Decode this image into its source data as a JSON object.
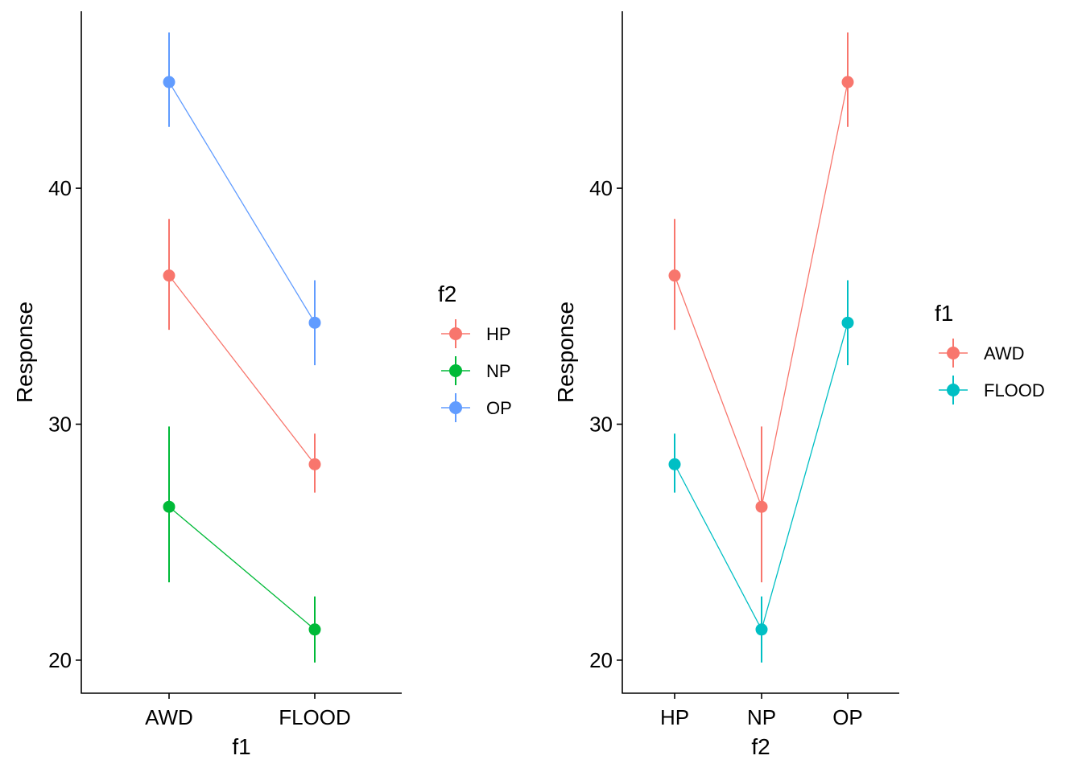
{
  "chart_data": [
    {
      "type": "line",
      "xlabel": "f1",
      "ylabel": "Response",
      "categories": [
        "AWD",
        "FLOOD"
      ],
      "ylim": [
        18.6,
        47.5
      ],
      "yticks": [
        20,
        30,
        40
      ],
      "grid": false,
      "legend": {
        "title": "f2",
        "position": "right"
      },
      "series": [
        {
          "name": "HP",
          "color": "#F8766D",
          "values": [
            36.3,
            28.3
          ],
          "lower": [
            34.0,
            27.1
          ],
          "upper": [
            38.7,
            29.6
          ]
        },
        {
          "name": "NP",
          "color": "#00BA38",
          "values": [
            26.5,
            21.3
          ],
          "lower": [
            23.3,
            19.9
          ],
          "upper": [
            29.9,
            22.7
          ]
        },
        {
          "name": "OP",
          "color": "#619CFF",
          "values": [
            44.5,
            34.3
          ],
          "lower": [
            42.6,
            32.5
          ],
          "upper": [
            46.6,
            36.1
          ]
        }
      ]
    },
    {
      "type": "line",
      "xlabel": "f2",
      "ylabel": "Response",
      "categories": [
        "HP",
        "NP",
        "OP"
      ],
      "ylim": [
        18.6,
        47.5
      ],
      "yticks": [
        20,
        30,
        40
      ],
      "grid": false,
      "legend": {
        "title": "f1",
        "position": "right"
      },
      "series": [
        {
          "name": "AWD",
          "color": "#F8766D",
          "values": [
            36.3,
            26.5,
            44.5
          ],
          "lower": [
            34.0,
            23.3,
            42.6
          ],
          "upper": [
            38.7,
            29.9,
            46.6
          ]
        },
        {
          "name": "FLOOD",
          "color": "#00BFC4",
          "values": [
            28.3,
            21.3,
            34.3
          ],
          "lower": [
            27.1,
            19.9,
            32.5
          ],
          "upper": [
            29.6,
            22.7,
            36.1
          ]
        }
      ]
    }
  ]
}
